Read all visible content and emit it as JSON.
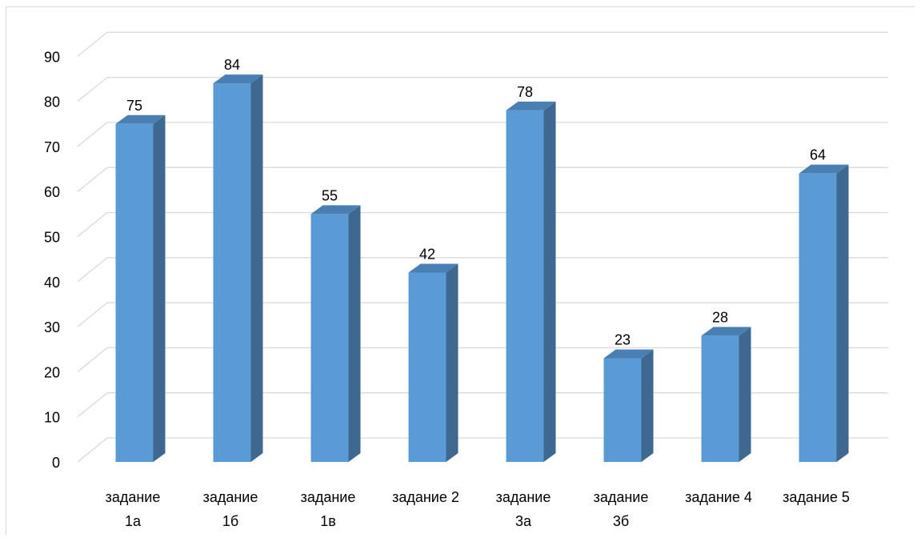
{
  "chart_data": {
    "type": "bar",
    "title": "",
    "xlabel": "",
    "ylabel": "",
    "ylim": [
      0,
      90
    ],
    "yticks": [
      "0",
      "10",
      "20",
      "30",
      "40",
      "50",
      "60",
      "70",
      "80",
      "90"
    ],
    "grid": true,
    "style": "3d-column",
    "categories": [
      [
        "задание",
        "1а"
      ],
      [
        "задание",
        "1б"
      ],
      [
        "задание",
        "1в"
      ],
      [
        "задание 2"
      ],
      [
        "задание",
        "3а"
      ],
      [
        "задание",
        "3б"
      ],
      [
        "задание 4"
      ],
      [
        "задание 5"
      ]
    ],
    "values": [
      75,
      84,
      55,
      42,
      78,
      23,
      28,
      64
    ],
    "data_labels": [
      "75",
      "84",
      "55",
      "42",
      "78",
      "23",
      "28",
      "64"
    ]
  },
  "colors": {
    "bar_front": "#5b9bd5",
    "bar_side": "#3e6890",
    "bar_top": "#4a7fb3",
    "grid": "#d9d9d9"
  }
}
